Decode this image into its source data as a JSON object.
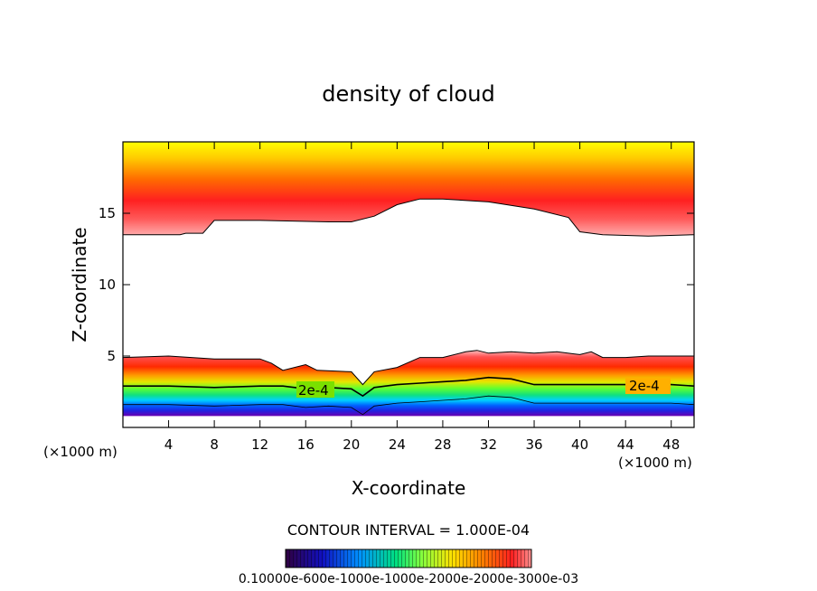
{
  "chart_data": {
    "type": "contour",
    "title": "density of cloud",
    "xlabel": "X-coordinate",
    "ylabel": "Z-coordinate",
    "x_unit_label": "(×1000 m)",
    "xlim": [
      0,
      50
    ],
    "ylim": [
      0,
      20
    ],
    "x_ticks": [
      4,
      8,
      12,
      16,
      20,
      24,
      28,
      32,
      36,
      40,
      44,
      48
    ],
    "y_ticks": [
      5,
      10,
      15
    ],
    "contour_interval_text": "CONTOUR INTERVAL = 1.000E-04",
    "contour_labels": [
      "2e-4",
      "2e-4"
    ],
    "colorbar_label_text": "0.10000e-600e-1000e-1000e-2000e-2000e-3000e-03",
    "colorbar_range": [
      0.0001,
      0.0003
    ],
    "upper_layer": {
      "cloud_base_x": [
        0,
        5,
        5.5,
        7,
        8,
        12,
        18,
        20,
        22,
        24,
        26,
        28,
        32,
        36,
        39,
        40,
        42,
        46,
        50
      ],
      "cloud_base_z": [
        13.5,
        13.5,
        13.6,
        13.6,
        14.5,
        14.5,
        14.4,
        14.4,
        14.8,
        15.6,
        16.0,
        16.0,
        15.8,
        15.3,
        14.7,
        13.7,
        13.5,
        13.4,
        13.5
      ]
    },
    "lower_layer": {
      "cloud_top_x": [
        0,
        4,
        8,
        12,
        13,
        14,
        16,
        17,
        20,
        21,
        22,
        24,
        26,
        28,
        30,
        31,
        32,
        34,
        36,
        38,
        40,
        41,
        42,
        44,
        46,
        48,
        50
      ],
      "cloud_top_z": [
        4.9,
        5.0,
        4.8,
        4.8,
        4.5,
        4.0,
        4.4,
        4.0,
        3.9,
        3.0,
        3.9,
        4.2,
        4.9,
        4.9,
        5.3,
        5.4,
        5.2,
        5.3,
        5.2,
        5.3,
        5.1,
        5.3,
        4.9,
        4.9,
        5.0,
        5.0,
        5.0
      ],
      "contour_2e4_x": [
        0,
        4,
        8,
        12,
        14,
        16,
        18,
        20,
        21,
        22,
        24,
        26,
        28,
        30,
        32,
        34,
        36,
        40,
        44,
        48,
        50
      ],
      "contour_2e4_z": [
        2.9,
        2.9,
        2.8,
        2.9,
        2.9,
        2.7,
        2.8,
        2.7,
        2.2,
        2.8,
        3.0,
        3.1,
        3.2,
        3.3,
        3.5,
        3.4,
        3.0,
        3.0,
        3.0,
        3.0,
        2.9
      ],
      "cloud_base_z": 0.8
    }
  }
}
